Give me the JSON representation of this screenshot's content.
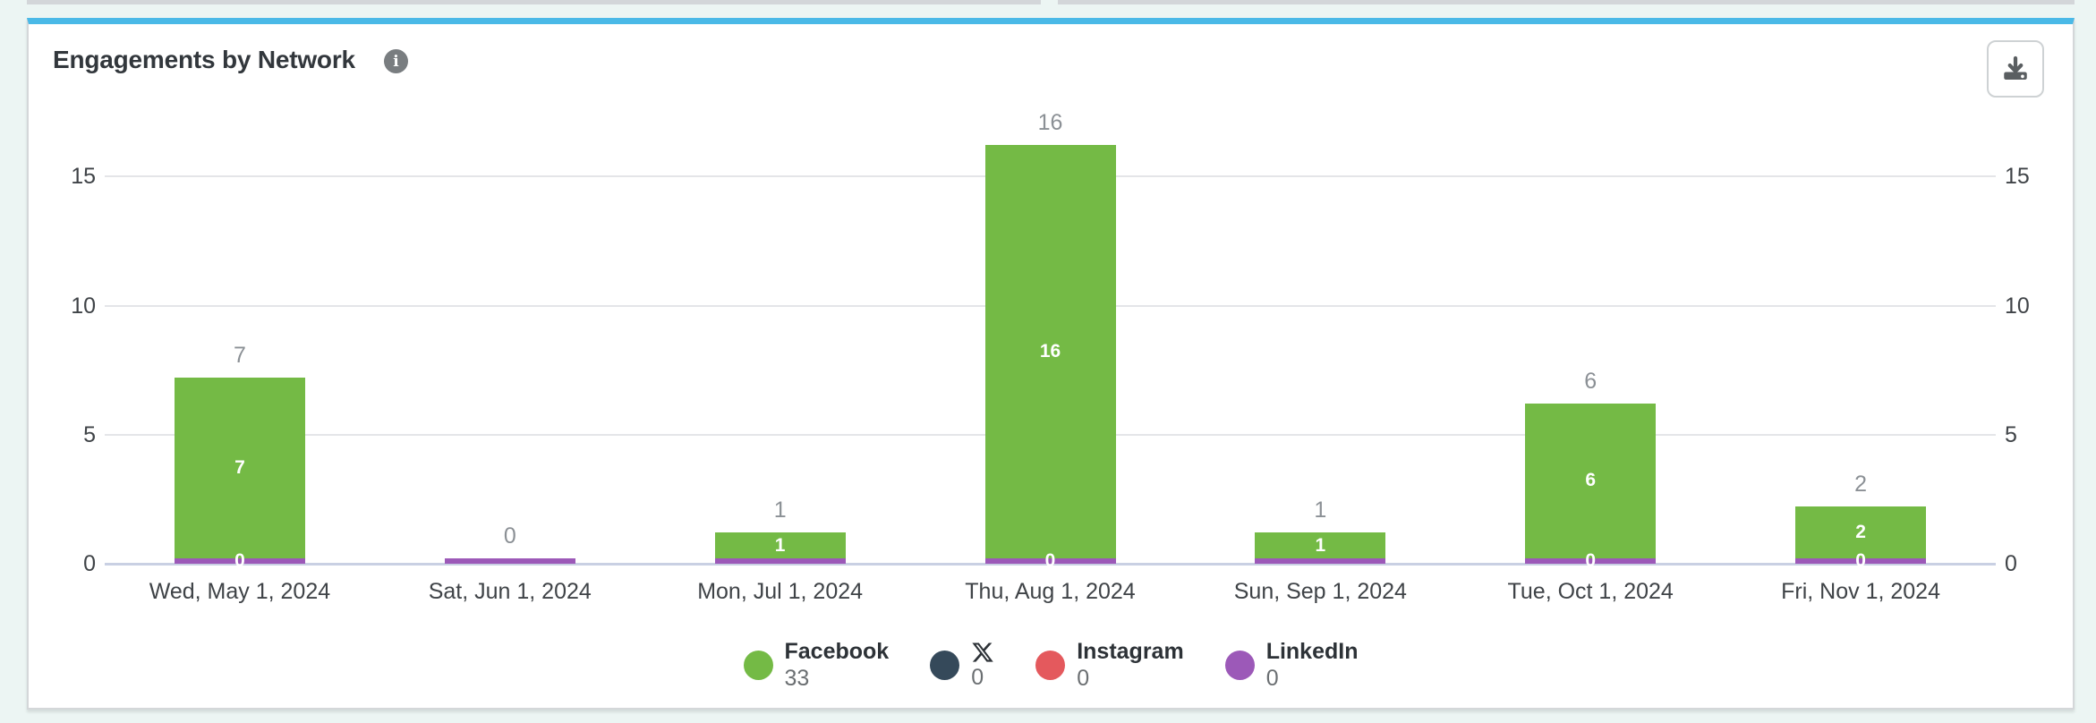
{
  "card": {
    "title": "Engagements by Network"
  },
  "icons": {
    "info": "i",
    "download": "tray-arrow-down",
    "x_network": "x-logo-glyph"
  },
  "colors": {
    "page_background": "#ecf5f3",
    "card_accent_top": "#4ab9e7",
    "facebook": "#74ba45",
    "x": "#35495a",
    "instagram": "#e4595d",
    "linkedin": "#9c59b8",
    "gridline": "#e4e5e8",
    "zero_line": "#c9d0e3",
    "total_label": "#8b9095",
    "axis_text": "#3f4347"
  },
  "chart_data": {
    "type": "bar",
    "stacked": true,
    "title": "Engagements by Network",
    "xlabel": "",
    "ylabel": "",
    "categories": [
      "Wed, May 1, 2024",
      "Sat, Jun 1, 2024",
      "Mon, Jul 1, 2024",
      "Thu, Aug 1, 2024",
      "Sun, Sep 1, 2024",
      "Tue, Oct 1, 2024",
      "Fri, Nov 1, 2024"
    ],
    "series": [
      {
        "name": "Facebook",
        "color": "#74ba45",
        "values": [
          7,
          0,
          1,
          16,
          1,
          6,
          2
        ],
        "total": 33
      },
      {
        "name": "X",
        "color": "#35495a",
        "values": [
          0,
          0,
          0,
          0,
          0,
          0,
          0
        ],
        "total": 0,
        "icon": "x-logo"
      },
      {
        "name": "Instagram",
        "color": "#e4595d",
        "values": [
          0,
          0,
          0,
          0,
          0,
          0,
          0
        ],
        "total": 0
      },
      {
        "name": "LinkedIn",
        "color": "#9c59b8",
        "values": [
          0,
          0,
          0,
          0,
          0,
          0,
          0
        ],
        "total": 0
      }
    ],
    "totals": [
      7,
      0,
      1,
      16,
      1,
      6,
      2
    ],
    "bar_value_labels": [
      "7",
      "0",
      "1",
      "16",
      "1",
      "6",
      "2"
    ],
    "linkedin_strip_labels": [
      "0",
      "",
      "",
      "0",
      "",
      "0",
      "0"
    ],
    "yticks": [
      0,
      5,
      10,
      15
    ],
    "ylim": [
      0,
      16.5
    ],
    "grid": true,
    "dual_y_axis": true,
    "legend_position": "bottom"
  }
}
